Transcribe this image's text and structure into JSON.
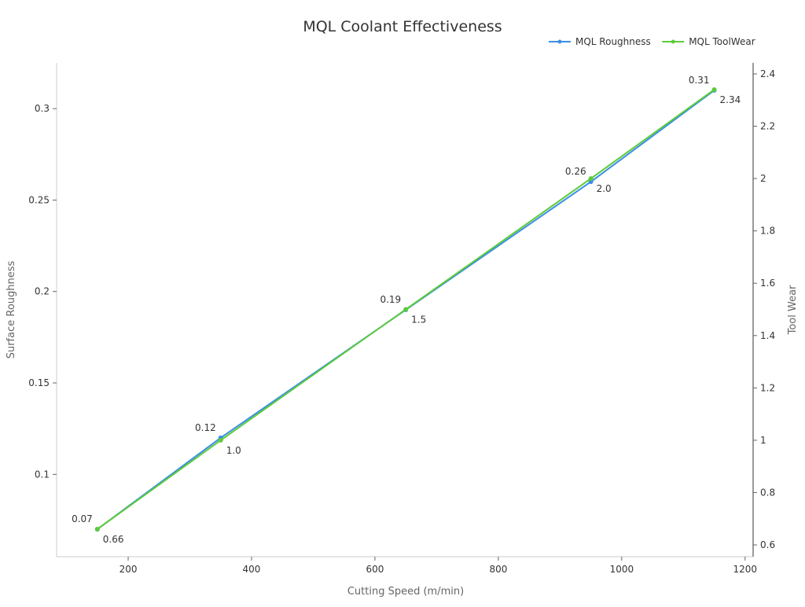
{
  "chart_data": {
    "type": "line",
    "title": "MQL Coolant Effectiveness",
    "xlabel": "Cutting Speed (m/min)",
    "ylabel": "Surface Roughness",
    "y2label": "Tool Wear",
    "x": [
      150,
      350,
      650,
      950,
      1150
    ],
    "xlim": [
      84,
      1213
    ],
    "ylim": [
      0.055,
      0.325
    ],
    "y2lim": [
      0.555,
      2.442
    ],
    "xticks": [
      200,
      400,
      600,
      800,
      1000,
      1200
    ],
    "yticks": [
      0.1,
      0.15,
      0.2,
      0.25,
      0.3
    ],
    "y2ticks": [
      0.6,
      0.8,
      1,
      1.2,
      1.4,
      1.6,
      1.8,
      2,
      2.2,
      2.4
    ],
    "grid": false,
    "legend_position": "top-right",
    "series": [
      {
        "name": "MQL Roughness",
        "axis": "left",
        "color": "#3a8ee6",
        "values": [
          0.07,
          0.12,
          0.19,
          0.26,
          0.31
        ],
        "labels": [
          "0.07",
          "0.12",
          "0.19",
          "0.26",
          "0.31"
        ]
      },
      {
        "name": "MQL ToolWear",
        "axis": "right",
        "color": "#5ccb3a",
        "values": [
          0.66,
          1.0,
          1.5,
          2.0,
          2.34
        ],
        "labels": [
          "0.66",
          "1.0",
          "1.5",
          "2.0",
          "2.34"
        ]
      }
    ]
  }
}
